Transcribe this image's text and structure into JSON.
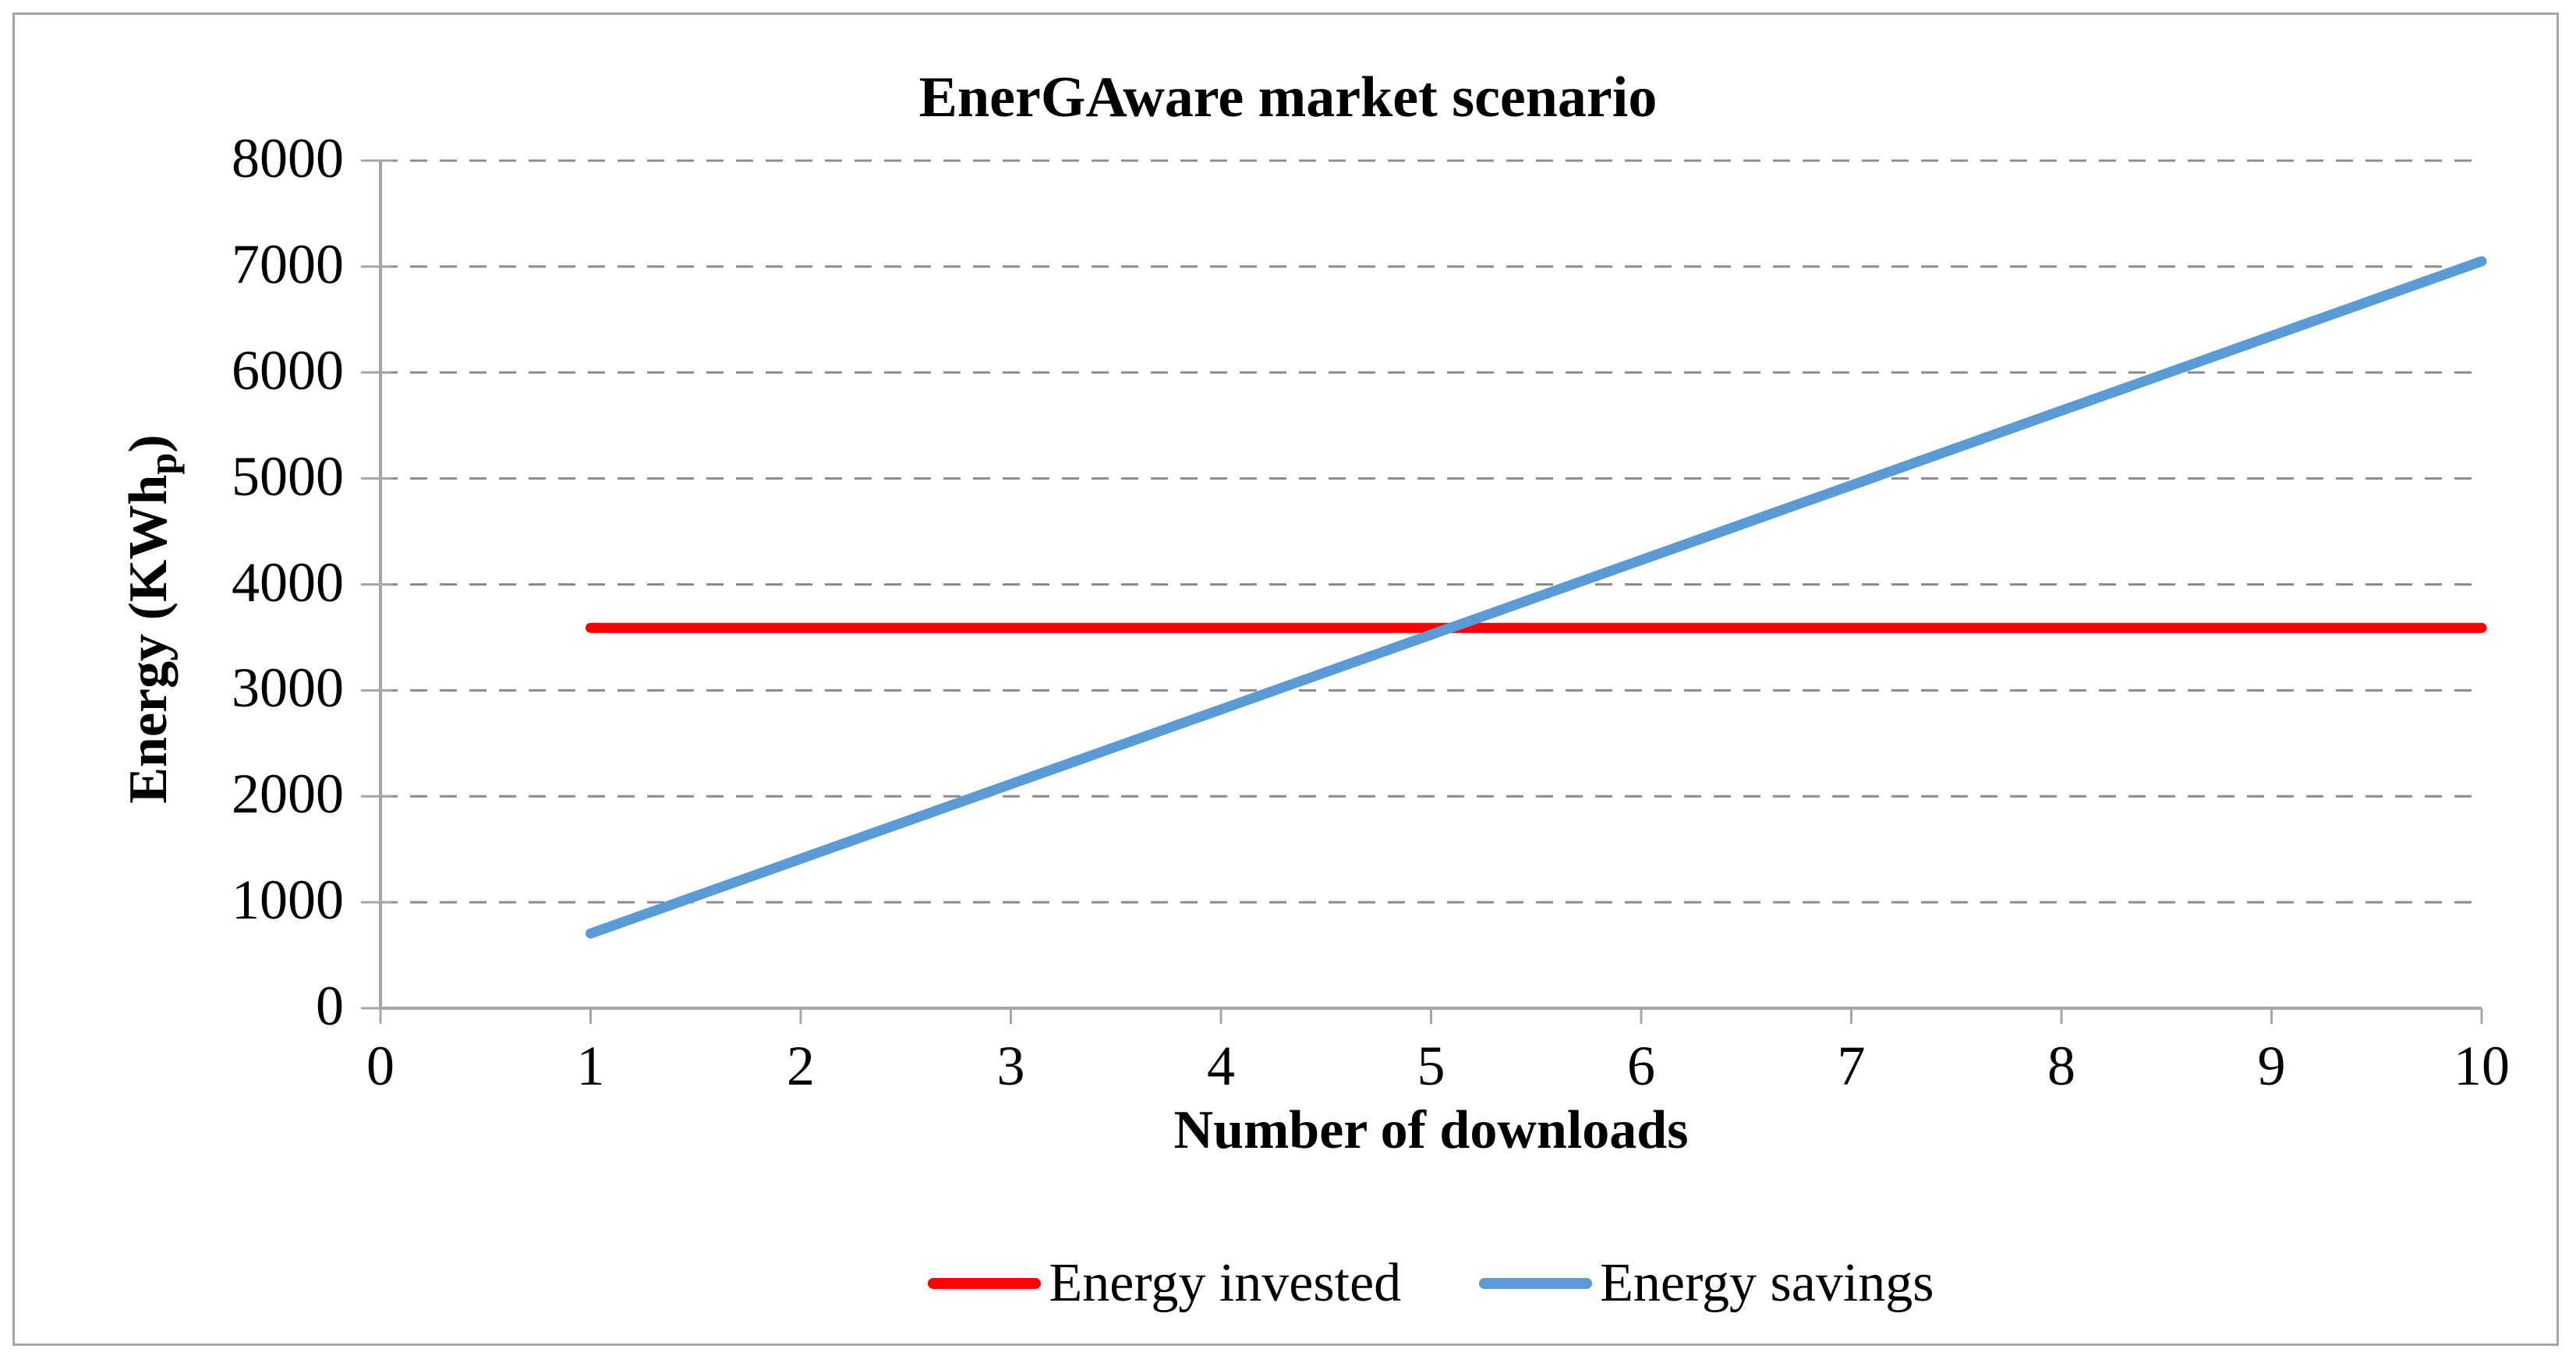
{
  "figure": {
    "border_color": "#A6A6A6",
    "background_color": "#FFFFFF"
  },
  "chart_data": {
    "type": "line",
    "title": "EnerGAware market scenario",
    "xlabel": "Number of downloads",
    "ylabel": "Energy (KWh_p)",
    "ylabel_parts": {
      "main": "Energy (KWh",
      "subscript": "p",
      "close": ")"
    },
    "xlim": [
      0,
      10
    ],
    "ylim": [
      0,
      8000
    ],
    "xticks": [
      0,
      1,
      2,
      3,
      4,
      5,
      6,
      7,
      8,
      9,
      10
    ],
    "yticks": [
      0,
      1000,
      2000,
      3000,
      4000,
      5000,
      6000,
      7000,
      8000
    ],
    "grid": "horizontal dashed gray",
    "legend_position": "bottom center",
    "x": [
      1,
      2,
      3,
      4,
      5,
      6,
      7,
      8,
      9,
      10
    ],
    "series": [
      {
        "name": "Energy invested",
        "color": "#FF0000",
        "values": [
          3590,
          3590,
          3590,
          3590,
          3590,
          3590,
          3590,
          3590,
          3590,
          3590
        ]
      },
      {
        "name": "Energy savings",
        "color": "#5B9BD5",
        "values": [
          705,
          1410,
          2115,
          2820,
          3525,
          4230,
          4935,
          5640,
          6345,
          7050
        ]
      }
    ],
    "colors": {
      "axis": "#A6A6A6",
      "gridline": "#8C8C8C",
      "tick": "#A6A6A6",
      "text": "#000000"
    }
  },
  "legend": {
    "items": [
      {
        "label": "Energy invested",
        "color": "#FF0000"
      },
      {
        "label": "Energy savings",
        "color": "#5B9BD5"
      }
    ]
  }
}
